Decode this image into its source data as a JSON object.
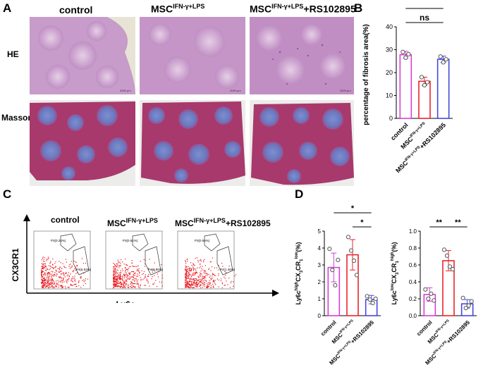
{
  "figure": {
    "panels": {
      "A": "A",
      "B": "B",
      "C": "C",
      "D": "D"
    },
    "panelA": {
      "col_titles": [
        {
          "main": "control",
          "sup": "",
          "suffix": ""
        },
        {
          "main": "MSC",
          "sup": "IFN-γ+LPS",
          "suffix": ""
        },
        {
          "main": "MSC",
          "sup": "IFN-γ+LPS",
          "suffix": "+RS102895"
        }
      ],
      "row_labels": [
        "HE",
        "Masson"
      ],
      "scalebar": "2000 μm",
      "colors": {
        "he_bg": "#e3cde3",
        "he_tissue": "#c89bc8",
        "masson_tissue": "#a83a6e",
        "masson_blue": "#6f7fc4"
      }
    },
    "panelC": {
      "col_titles": [
        {
          "main": "control",
          "sup": "",
          "suffix": ""
        },
        {
          "main": "MSC",
          "sup": "IFN-γ+LPS",
          "suffix": ""
        },
        {
          "main": "MSC",
          "sup": "IFN-γ+LPS",
          "suffix": "+RS102895"
        }
      ],
      "y_axis": "CX3CR1",
      "x_axis": "Ly6c",
      "gates": [
        {
          "p3": "P3(0.24%)",
          "p4": "P4(1.53%)"
        },
        {
          "p3": "P3(0.61%)",
          "p4": "P4(3.90%)"
        },
        {
          "p3": "P3(0.56%)",
          "p4": "P4(1.46%)"
        }
      ],
      "dot_color": "#e8161c"
    }
  },
  "chart_data": [
    {
      "id": "B",
      "type": "bar",
      "ylabel": "percentage of fibrosis area(%)",
      "ylim": [
        0,
        40
      ],
      "yticks": [
        0,
        10,
        20,
        30,
        40
      ],
      "categories": [
        {
          "main": "control",
          "sup": "",
          "suffix": ""
        },
        {
          "main": "MSC",
          "sup": "IFN-γ+LPS",
          "suffix": ""
        },
        {
          "main": "MSC",
          "sup": "IFN-γ+LPS",
          "suffix": "+RS102895"
        }
      ],
      "values": [
        27.8,
        16.2,
        25.8
      ],
      "errors": [
        1.5,
        1.8,
        1.4
      ],
      "points": [
        [
          29,
          26.5,
          28
        ],
        [
          18,
          14.5,
          15.8
        ],
        [
          27,
          24.5,
          25.8
        ]
      ],
      "colors": [
        "#d63fd6",
        "#e8262d",
        "#4747e0"
      ],
      "significance": [
        {
          "from": 0,
          "to": 2,
          "label": "ns",
          "level": 0
        },
        {
          "from": 0,
          "to": 1,
          "label": "**",
          "level": 1
        },
        {
          "from": 1,
          "to": 2,
          "label": "**",
          "level": 1
        }
      ]
    },
    {
      "id": "D1",
      "type": "bar",
      "ylabel_parts": [
        "Ly6c",
        "high",
        "CX",
        "3",
        "CR",
        "1",
        "low",
        "(%)"
      ],
      "ylim": [
        0,
        5
      ],
      "yticks": [
        0,
        1,
        2,
        3,
        4,
        5
      ],
      "categories": [
        {
          "main": "control",
          "sup": "",
          "suffix": ""
        },
        {
          "main": "MSC",
          "sup": "IFN-γ+LPS",
          "suffix": ""
        },
        {
          "main": "MSC",
          "sup": "IFN-γ+LPS",
          "suffix": "+RS102895"
        }
      ],
      "values": [
        2.85,
        3.6,
        0.95
      ],
      "errors": [
        0.85,
        0.9,
        0.25
      ],
      "points": [
        [
          3.95,
          2.7,
          1.8,
          3.3
        ],
        [
          4.65,
          3.85,
          3.25,
          2.4
        ],
        [
          1.15,
          0.95,
          0.75,
          1.0
        ]
      ],
      "colors": [
        "#d63fd6",
        "#e8262d",
        "#4747e0"
      ],
      "significance": [
        {
          "from": 0,
          "to": 2,
          "label": "*",
          "level": 1
        },
        {
          "from": 1,
          "to": 2,
          "label": "*",
          "level": 0
        }
      ]
    },
    {
      "id": "D2",
      "type": "bar",
      "ylabel_parts": [
        "Ly6c",
        "low",
        "CX",
        "3",
        "CR",
        "1",
        "high",
        "(%)"
      ],
      "ylim": [
        0,
        1.0
      ],
      "yticks": [
        0.0,
        0.2,
        0.4,
        0.6,
        0.8,
        1.0
      ],
      "categories": [
        {
          "main": "control",
          "sup": "",
          "suffix": ""
        },
        {
          "main": "MSC",
          "sup": "IFN-γ+LPS",
          "suffix": ""
        },
        {
          "main": "MSC",
          "sup": "IFN-γ+LPS",
          "suffix": "+RS102895"
        }
      ],
      "values": [
        0.25,
        0.65,
        0.14
      ],
      "errors": [
        0.08,
        0.12,
        0.05
      ],
      "points": [
        [
          0.31,
          0.2,
          0.26,
          0.18
        ],
        [
          0.78,
          0.71,
          0.58,
          0.55
        ],
        [
          0.21,
          0.09,
          0.12,
          0.17
        ]
      ],
      "colors": [
        "#d63fd6",
        "#e8262d",
        "#4747e0"
      ],
      "significance": [
        {
          "from": 0,
          "to": 1,
          "label": "**",
          "level": 0
        },
        {
          "from": 1,
          "to": 2,
          "label": "**",
          "level": 0
        }
      ]
    }
  ]
}
